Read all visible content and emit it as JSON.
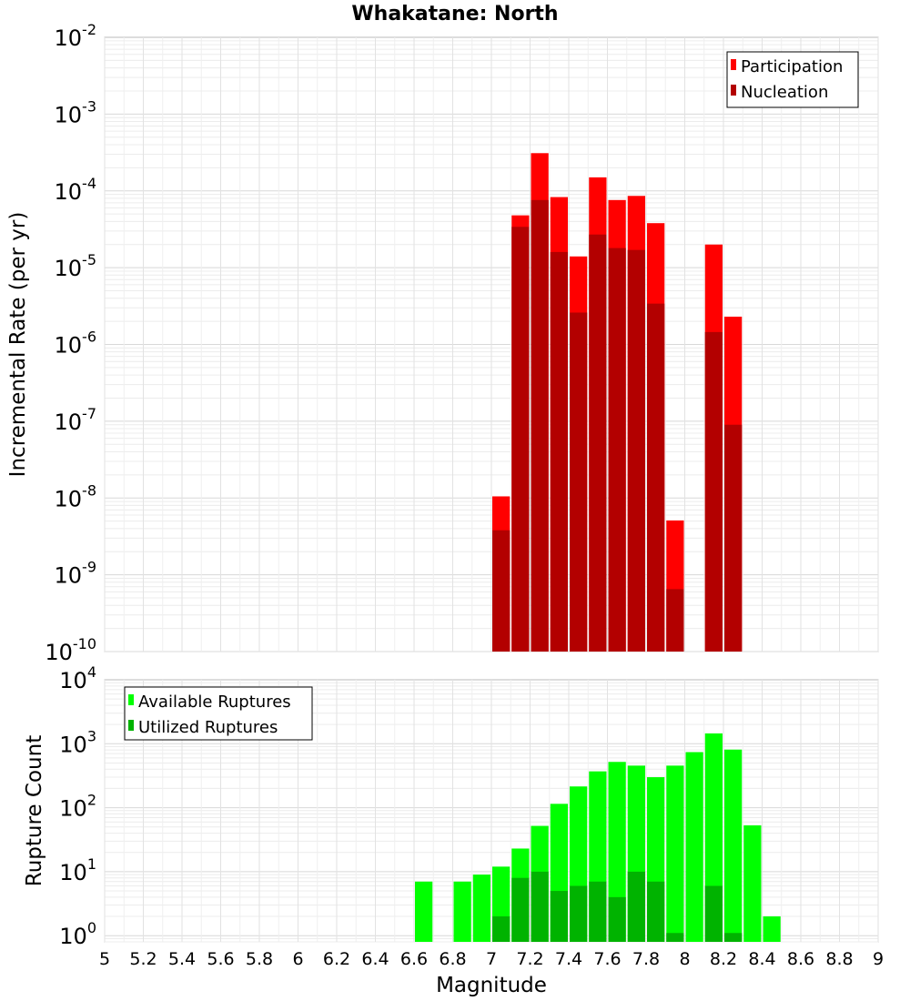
{
  "title": "Whakatane: North",
  "colors": {
    "participation": "#ff0000",
    "nucleation": "#b30000",
    "available": "#00ff00",
    "utilized": "#00b300"
  },
  "chart_data": [
    {
      "type": "bar",
      "ylabel": "Incremental Rate (per yr)",
      "yscale": "log",
      "ylim": [
        1e-10,
        0.01
      ],
      "xlim": [
        5,
        9
      ],
      "y_tick_labels": [
        {
          "base": "10",
          "exp": "-10"
        },
        {
          "base": "10",
          "exp": "-9"
        },
        {
          "base": "10",
          "exp": "-8"
        },
        {
          "base": "10",
          "exp": "-7"
        },
        {
          "base": "10",
          "exp": "-6"
        },
        {
          "base": "10",
          "exp": "-5"
        },
        {
          "base": "10",
          "exp": "-4"
        },
        {
          "base": "10",
          "exp": "-3"
        },
        {
          "base": "10",
          "exp": "-2"
        }
      ],
      "legend": {
        "placement": "top-right",
        "entries": [
          "Participation",
          "Nucleation"
        ]
      },
      "grid": true,
      "x": [
        7.05,
        7.15,
        7.25,
        7.35,
        7.45,
        7.55,
        7.65,
        7.75,
        7.85,
        7.95,
        8.15,
        8.25
      ],
      "series": [
        {
          "name": "Participation",
          "values": [
            1.05e-08,
            4.8e-05,
            0.00031,
            8.3e-05,
            1.4e-05,
            0.00015,
            7.6e-05,
            8.6e-05,
            3.8e-05,
            5.1e-09,
            2e-05,
            2.3e-06
          ]
        },
        {
          "name": "Nucleation",
          "values": [
            3.8e-09,
            3.4e-05,
            7.6e-05,
            1.6e-05,
            2.6e-06,
            2.7e-05,
            1.8e-05,
            1.7e-05,
            3.4e-06,
            6.5e-10,
            1.45e-06,
            9e-08
          ]
        }
      ]
    },
    {
      "type": "bar",
      "xlabel": "Magnitude",
      "ylabel": "Rupture Count",
      "yscale": "log",
      "ylim": [
        0.8,
        10000
      ],
      "xlim": [
        5,
        9
      ],
      "y_tick_labels": [
        {
          "base": "10",
          "exp": "0"
        },
        {
          "base": "10",
          "exp": "1"
        },
        {
          "base": "10",
          "exp": "2"
        },
        {
          "base": "10",
          "exp": "3"
        },
        {
          "base": "10",
          "exp": "4"
        }
      ],
      "x_tick_labels": [
        "5",
        "5.2",
        "5.4",
        "5.6",
        "5.8",
        "6",
        "6.2",
        "6.4",
        "6.6",
        "6.8",
        "7",
        "7.2",
        "7.4",
        "7.6",
        "7.8",
        "8",
        "8.2",
        "8.4",
        "8.6",
        "8.8",
        "9"
      ],
      "legend": {
        "placement": "top-left",
        "entries": [
          "Available Ruptures",
          "Utilized Ruptures"
        ]
      },
      "grid": true,
      "x": [
        6.65,
        6.85,
        6.95,
        7.05,
        7.15,
        7.25,
        7.35,
        7.45,
        7.55,
        7.65,
        7.75,
        7.85,
        7.95,
        8.05,
        8.15,
        8.25,
        8.35,
        8.45
      ],
      "series": [
        {
          "name": "Available Ruptures",
          "values": [
            7,
            7,
            9,
            12,
            23,
            52,
            115,
            215,
            370,
            520,
            455,
            300,
            455,
            740,
            1450,
            810,
            53,
            2
          ]
        },
        {
          "name": "Utilized Ruptures",
          "values": [
            null,
            null,
            null,
            2,
            8,
            10,
            5,
            6,
            7,
            4,
            10,
            7,
            1.1,
            null,
            6,
            1.1,
            null,
            null
          ]
        }
      ]
    }
  ]
}
